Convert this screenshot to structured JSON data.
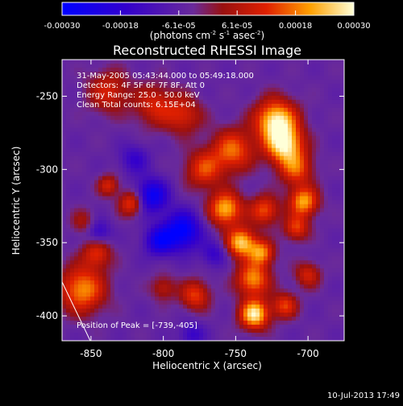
{
  "chart_data": {
    "type": "heatmap",
    "title": "Reconstructed RHESSI Image",
    "xlabel": "Heliocentric X (arcsec)",
    "ylabel": "Heliocentric Y (arcsec)",
    "xlim": [
      -870,
      -675
    ],
    "ylim": [
      -417,
      -225
    ],
    "xticks": [
      -850,
      -800,
      -750,
      -700
    ],
    "yticks": [
      -250,
      -300,
      -350,
      -400
    ],
    "colorbar": {
      "range": [
        -0.0003,
        0.0003
      ],
      "ticks": [
        "-0.00030",
        "-0.00018",
        "-6.1e-05",
        "6.1e-05",
        "0.00018",
        "0.00030"
      ],
      "unit_html": "(photons cm<tspan dy='-5' font-size='7'>-2</tspan><tspan dy='5'> s</tspan><tspan dy='-5' font-size='7'>-1</tspan><tspan dy='5'> asec</tspan><tspan dy='-5' font-size='7'>-2</tspan><tspan dy='5'>)</tspan>"
    },
    "annotations": [
      "31-May-2005 05:43:44.000 to 05:49:18.000",
      "Detectors: 4F 5F 6F 7F 8F, Att 0",
      "Energy Range: 25.0 - 50.0 keV",
      "Clean     Total counts: 6.15E+04"
    ],
    "peak_label": "Position of Peak = [-739,-405]",
    "peak": [
      -739,
      -405
    ],
    "blobs": [
      {
        "x": -722,
        "y": -267,
        "a": 1.0,
        "s": 10
      },
      {
        "x": -716,
        "y": -284,
        "a": 0.9,
        "s": 9
      },
      {
        "x": -708,
        "y": -300,
        "a": 0.55,
        "s": 8
      },
      {
        "x": -752,
        "y": -287,
        "a": 0.65,
        "s": 10
      },
      {
        "x": -772,
        "y": -300,
        "a": 0.55,
        "s": 9
      },
      {
        "x": -838,
        "y": -247,
        "a": 0.45,
        "s": 10
      },
      {
        "x": -806,
        "y": -256,
        "a": 0.45,
        "s": 10
      },
      {
        "x": -786,
        "y": -263,
        "a": 0.45,
        "s": 9
      },
      {
        "x": -757,
        "y": -327,
        "a": 0.85,
        "s": 8
      },
      {
        "x": -730,
        "y": -328,
        "a": 0.6,
        "s": 7
      },
      {
        "x": -703,
        "y": -322,
        "a": 0.8,
        "s": 7
      },
      {
        "x": -708,
        "y": -340,
        "a": 0.55,
        "s": 6
      },
      {
        "x": -746,
        "y": -350,
        "a": 0.9,
        "s": 7
      },
      {
        "x": -732,
        "y": -357,
        "a": 0.7,
        "s": 6
      },
      {
        "x": -738,
        "y": -375,
        "a": 0.75,
        "s": 8
      },
      {
        "x": -737,
        "y": -399,
        "a": 1.0,
        "s": 7
      },
      {
        "x": -716,
        "y": -393,
        "a": 0.55,
        "s": 6
      },
      {
        "x": -700,
        "y": -372,
        "a": 0.45,
        "s": 6
      },
      {
        "x": -822,
        "y": -323,
        "a": 0.6,
        "s": 6
      },
      {
        "x": -838,
        "y": -311,
        "a": 0.45,
        "s": 5
      },
      {
        "x": -856,
        "y": -382,
        "a": 0.75,
        "s": 11
      },
      {
        "x": -846,
        "y": -357,
        "a": 0.5,
        "s": 7
      },
      {
        "x": -778,
        "y": -386,
        "a": 0.55,
        "s": 7
      },
      {
        "x": -800,
        "y": -381,
        "a": 0.35,
        "s": 6
      },
      {
        "x": -855,
        "y": -336,
        "a": 0.3,
        "s": 6
      },
      {
        "x": -808,
        "y": -318,
        "a": -0.7,
        "s": 8
      },
      {
        "x": -787,
        "y": -342,
        "a": -0.8,
        "s": 9
      },
      {
        "x": -803,
        "y": -349,
        "a": -0.6,
        "s": 7
      },
      {
        "x": -845,
        "y": -343,
        "a": -0.4,
        "s": 6
      },
      {
        "x": -820,
        "y": -293,
        "a": -0.35,
        "s": 7
      },
      {
        "x": -765,
        "y": -358,
        "a": -0.35,
        "s": 6
      },
      {
        "x": -780,
        "y": -413,
        "a": -0.35,
        "s": 6
      }
    ]
  },
  "timestamp": "10-Jul-2013 17:49"
}
